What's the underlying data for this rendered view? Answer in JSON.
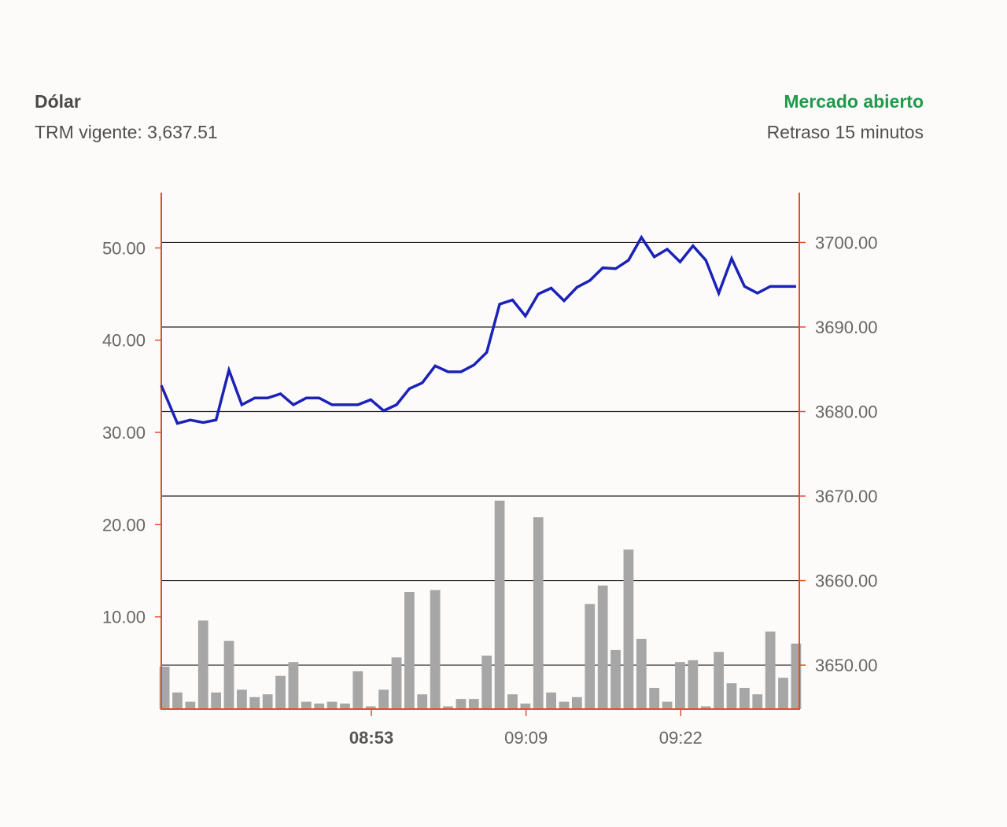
{
  "header": {
    "title": "Dólar",
    "trm_label": "TRM vigente: 3,637.51",
    "market_status": "Mercado abierto",
    "delay": "Retraso 15 minutos"
  },
  "colors": {
    "price_line": "#1a22b8",
    "volume_bar": "#a6a6a6",
    "axis": "#e0502a",
    "grid": "#222222",
    "status_open": "#1f9a4a",
    "tick_text": "#666666"
  },
  "chart_data": {
    "type": "line+bar",
    "left_axis": {
      "ticks": [
        "10.00",
        "20.00",
        "30.00",
        "40.00",
        "50.00"
      ],
      "tick_values": [
        10,
        20,
        30,
        40,
        50
      ],
      "range": [
        0,
        56
      ]
    },
    "right_axis": {
      "ticks": [
        "3650.00",
        "3660.00",
        "3670.00",
        "3680.00",
        "3690.00",
        "3700.00"
      ],
      "tick_values": [
        3650,
        3660,
        3670,
        3680,
        3690,
        3700
      ],
      "range": [
        3644.8,
        3705.9
      ]
    },
    "x_ticks": [
      {
        "label": "08:53",
        "index": 16,
        "bold": true
      },
      {
        "label": "09:09",
        "index": 28,
        "bold": false
      },
      {
        "label": "09:22",
        "index": 40,
        "bold": false
      }
    ],
    "price": [
      3683.1,
      3678.6,
      3679.0,
      3678.7,
      3679.0,
      3684.9,
      3680.8,
      3681.6,
      3681.6,
      3682.1,
      3680.8,
      3681.6,
      3681.6,
      3680.8,
      3680.8,
      3680.8,
      3681.4,
      3680.1,
      3680.8,
      3682.7,
      3683.4,
      3685.4,
      3684.7,
      3684.7,
      3685.5,
      3687.0,
      3692.7,
      3693.2,
      3691.3,
      3693.9,
      3694.6,
      3693.1,
      3694.7,
      3695.5,
      3697.0,
      3696.9,
      3697.9,
      3700.6,
      3698.3,
      3699.2,
      3697.7,
      3699.6,
      3697.9,
      3694.0,
      3698.1,
      3694.8,
      3694.0,
      3694.8,
      3694.8,
      3694.8
    ],
    "volume": [
      4.6,
      1.8,
      0.8,
      9.6,
      1.8,
      7.4,
      2.1,
      1.3,
      1.6,
      3.6,
      5.1,
      0.8,
      0.6,
      0.8,
      0.6,
      4.1,
      0.3,
      2.1,
      5.6,
      12.7,
      1.6,
      12.9,
      0.3,
      1.1,
      1.1,
      5.8,
      22.6,
      1.6,
      0.6,
      20.8,
      1.8,
      0.8,
      1.3,
      11.4,
      13.4,
      6.4,
      17.3,
      7.6,
      2.3,
      0.8,
      5.1,
      5.3,
      0.3,
      6.2,
      2.8,
      2.3,
      1.6,
      8.4,
      3.4,
      7.1
    ]
  }
}
